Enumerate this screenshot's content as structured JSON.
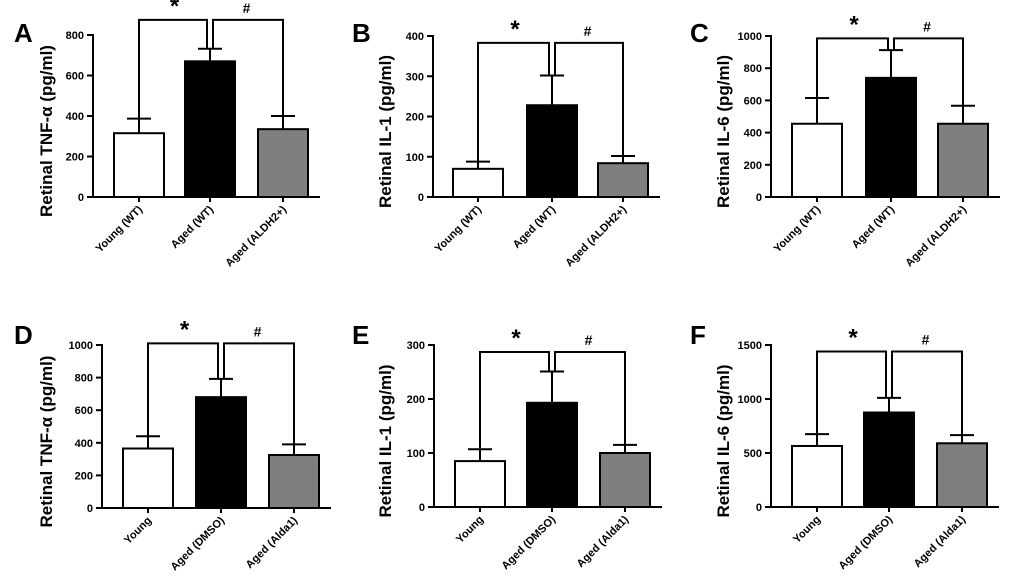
{
  "figure": {
    "background": "#ffffff",
    "ink": "#000000"
  },
  "chart_data": [
    {
      "panel_label": "A",
      "type": "bar",
      "ylabel": "Retinal TNF-α (pg/ml)",
      "categories": [
        "Young (WT)",
        "Aged (WT)",
        "Aged (ALDH2+)"
      ],
      "values": [
        315,
        670,
        335
      ],
      "errors": [
        72,
        62,
        65
      ],
      "colors": [
        "#ffffff",
        "#000000",
        "#7f7f7f"
      ],
      "ylim": [
        0,
        800
      ],
      "yticks": [
        "0",
        "200",
        "400",
        "600",
        "800"
      ],
      "ytick_values": [
        0,
        200,
        400,
        600,
        800
      ],
      "sig_left": "*",
      "sig_right": "#",
      "bracket_y": 875
    },
    {
      "panel_label": "B",
      "type": "bar",
      "ylabel": "Retinal IL-1 (pg/ml)",
      "categories": [
        "Young (WT)",
        "Aged (WT)",
        "Aged (ALDH2+)"
      ],
      "values": [
        70,
        228,
        84
      ],
      "errors": [
        18,
        74,
        18
      ],
      "colors": [
        "#ffffff",
        "#000000",
        "#7f7f7f"
      ],
      "ylim": [
        0,
        400
      ],
      "yticks": [
        "0",
        "100",
        "200",
        "300",
        "400"
      ],
      "ytick_values": [
        0,
        100,
        200,
        300,
        400
      ],
      "sig_left": "*",
      "sig_right": "#",
      "bracket_y": 383
    },
    {
      "panel_label": "C",
      "type": "bar",
      "ylabel": "Retinal IL-6 (pg/ml)",
      "categories": [
        "Young (WT)",
        "Aged (WT)",
        "Aged (ALDH2+)"
      ],
      "values": [
        455,
        740,
        455
      ],
      "errors": [
        160,
        172,
        112
      ],
      "colors": [
        "#ffffff",
        "#000000",
        "#7f7f7f"
      ],
      "ylim": [
        0,
        1000
      ],
      "yticks": [
        "0",
        "200",
        "400",
        "600",
        "800",
        "1000"
      ],
      "ytick_values": [
        0,
        200,
        400,
        600,
        800,
        1000
      ],
      "sig_left": "*",
      "sig_right": "#",
      "bracket_y": 985
    },
    {
      "panel_label": "D",
      "type": "bar",
      "ylabel": "Retinal TNF-α (pg/ml)",
      "categories": [
        "Young",
        "Aged (DMSO)",
        "Aged (Alda1)"
      ],
      "values": [
        365,
        680,
        325
      ],
      "errors": [
        75,
        112,
        65
      ],
      "colors": [
        "#ffffff",
        "#000000",
        "#7f7f7f"
      ],
      "ylim": [
        0,
        1000
      ],
      "yticks": [
        "0",
        "200",
        "400",
        "600",
        "800",
        "1000"
      ],
      "ytick_values": [
        0,
        200,
        400,
        600,
        800,
        1000
      ],
      "sig_left": "*",
      "sig_right": "#",
      "bracket_y": 1010
    },
    {
      "panel_label": "E",
      "type": "bar",
      "ylabel": "Retinal IL-1 (pg/ml)",
      "categories": [
        "Young",
        "Aged (DMSO)",
        "Aged (Alda1)"
      ],
      "values": [
        85,
        193,
        100
      ],
      "errors": [
        22,
        58,
        15
      ],
      "colors": [
        "#ffffff",
        "#000000",
        "#7f7f7f"
      ],
      "ylim": [
        0,
        300
      ],
      "yticks": [
        "0",
        "100",
        "200",
        "300"
      ],
      "ytick_values": [
        0,
        100,
        200,
        300
      ],
      "sig_left": "*",
      "sig_right": "#",
      "bracket_y": 287
    },
    {
      "panel_label": "F",
      "type": "bar",
      "ylabel": "Retinal IL-6 (pg/ml)",
      "categories": [
        "Young",
        "Aged (DMSO)",
        "Aged (Alda1)"
      ],
      "values": [
        565,
        875,
        590
      ],
      "errors": [
        110,
        135,
        75
      ],
      "colors": [
        "#ffffff",
        "#000000",
        "#7f7f7f"
      ],
      "ylim": [
        0,
        1500
      ],
      "yticks": [
        "0",
        "500",
        "1000",
        "1500"
      ],
      "ytick_values": [
        0,
        500,
        1000,
        1500
      ],
      "sig_left": "*",
      "sig_right": "#",
      "bracket_y": 1440
    }
  ]
}
